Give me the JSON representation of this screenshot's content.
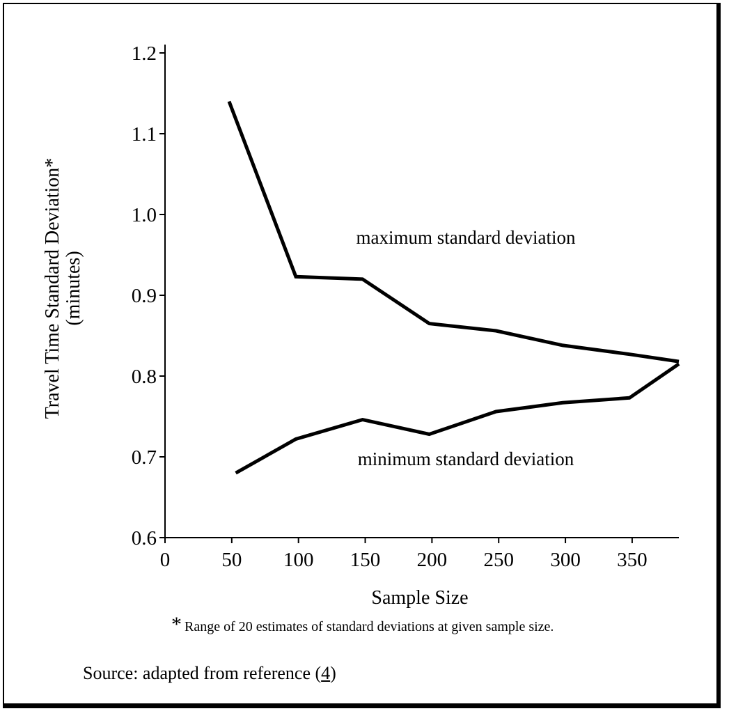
{
  "chart_data": {
    "type": "line",
    "ylabel_line1": "Travel Time Standard Deviation*",
    "ylabel_line2": "(minutes)",
    "xlabel": "Sample Size",
    "xlim": [
      0,
      385
    ],
    "ylim": [
      0.6,
      1.2
    ],
    "x_ticks": [
      "0",
      "50",
      "100",
      "150",
      "200",
      "250",
      "300",
      "350"
    ],
    "y_ticks": [
      "0.6",
      "0.7",
      "0.8",
      "0.9",
      "1.0",
      "1.1",
      "1.2"
    ],
    "grid": false,
    "series": [
      {
        "name": "maximum standard deviation",
        "x": [
          48,
          98,
          148,
          198,
          248,
          298,
          348,
          385
        ],
        "y": [
          1.14,
          0.923,
          0.92,
          0.865,
          0.856,
          0.838,
          0.827,
          0.818
        ]
      },
      {
        "name": "minimum standard deviation",
        "x": [
          53,
          98,
          148,
          198,
          248,
          298,
          348,
          385
        ],
        "y": [
          0.68,
          0.722,
          0.746,
          0.728,
          0.756,
          0.767,
          0.773,
          0.815
        ]
      }
    ]
  },
  "footnote": {
    "star": "*",
    "text": "Range of 20 estimates of standard deviations at given sample size."
  },
  "source": {
    "prefix": "Source: adapted from reference (",
    "ref": "4",
    "suffix": ")"
  }
}
